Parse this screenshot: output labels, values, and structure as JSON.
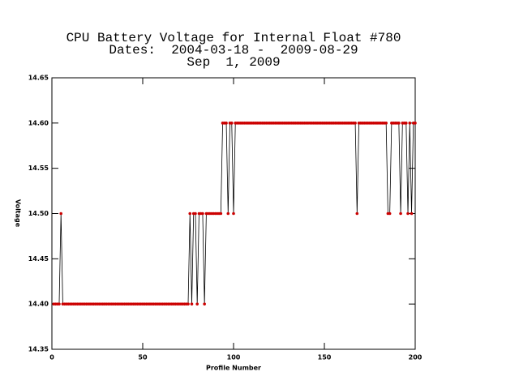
{
  "chart_data": {
    "type": "line",
    "title_lines": [
      "CPU Battery Voltage for Internal Float #780",
      "Dates:  2004-03-18 -  2009-08-29",
      "Sep  1, 2009"
    ],
    "x_label": "Profile Number",
    "y_label": "Voltage",
    "color": "#cc0000",
    "line_color": "#000000",
    "xlim": [
      0,
      200
    ],
    "xticks": [
      0,
      50,
      100,
      150,
      200
    ],
    "ylim": [
      14.35,
      14.65
    ],
    "yticks": [
      14.35,
      {
        "value": 14.4,
        "label": "14.40"
      },
      14.45,
      {
        "value": 14.5,
        "label": "14.50"
      },
      14.55,
      {
        "value": 14.6,
        "label": "14.60"
      },
      14.65
    ],
    "x": [
      1,
      2,
      3,
      4,
      5,
      6,
      7,
      8,
      9,
      10,
      11,
      12,
      13,
      14,
      15,
      16,
      17,
      18,
      19,
      20,
      21,
      22,
      23,
      24,
      25,
      26,
      27,
      28,
      29,
      30,
      31,
      32,
      33,
      34,
      35,
      36,
      37,
      38,
      39,
      40,
      41,
      42,
      43,
      44,
      45,
      46,
      47,
      48,
      49,
      50,
      51,
      52,
      53,
      54,
      55,
      56,
      57,
      58,
      59,
      60,
      61,
      62,
      63,
      64,
      65,
      66,
      67,
      68,
      69,
      70,
      71,
      72,
      73,
      74,
      75,
      76,
      77,
      78,
      79,
      80,
      81,
      82,
      83,
      84,
      85,
      86,
      87,
      88,
      89,
      90,
      91,
      92,
      93,
      94,
      95,
      96,
      97,
      98,
      99,
      100,
      101,
      102,
      103,
      104,
      105,
      106,
      107,
      108,
      109,
      110,
      111,
      112,
      113,
      114,
      115,
      116,
      117,
      118,
      119,
      120,
      121,
      122,
      123,
      124,
      125,
      126,
      127,
      128,
      129,
      130,
      131,
      132,
      133,
      134,
      135,
      136,
      137,
      138,
      139,
      140,
      141,
      142,
      143,
      144,
      145,
      146,
      147,
      148,
      149,
      150,
      151,
      152,
      153,
      154,
      155,
      156,
      157,
      158,
      159,
      160,
      161,
      162,
      163,
      164,
      165,
      166,
      167,
      168,
      169,
      170,
      171,
      172,
      173,
      174,
      175,
      176,
      177,
      178,
      179,
      180,
      181,
      182,
      183,
      184,
      185,
      186,
      187,
      188,
      189,
      190,
      191,
      192,
      193,
      194,
      195,
      196,
      197,
      198,
      199,
      200
    ],
    "values": [
      14.4,
      14.4,
      14.4,
      14.4,
      14.5,
      14.4,
      14.4,
      14.4,
      14.4,
      14.4,
      14.4,
      14.4,
      14.4,
      14.4,
      14.4,
      14.4,
      14.4,
      14.4,
      14.4,
      14.4,
      14.4,
      14.4,
      14.4,
      14.4,
      14.4,
      14.4,
      14.4,
      14.4,
      14.4,
      14.4,
      14.4,
      14.4,
      14.4,
      14.4,
      14.4,
      14.4,
      14.4,
      14.4,
      14.4,
      14.4,
      14.4,
      14.4,
      14.4,
      14.4,
      14.4,
      14.4,
      14.4,
      14.4,
      14.4,
      14.4,
      14.4,
      14.4,
      14.4,
      14.4,
      14.4,
      14.4,
      14.4,
      14.4,
      14.4,
      14.4,
      14.4,
      14.4,
      14.4,
      14.4,
      14.4,
      14.4,
      14.4,
      14.4,
      14.4,
      14.4,
      14.4,
      14.4,
      14.4,
      14.4,
      14.4,
      14.5,
      14.4,
      14.5,
      14.5,
      14.4,
      14.5,
      14.5,
      14.5,
      14.4,
      14.5,
      14.5,
      14.5,
      14.5,
      14.5,
      14.5,
      14.5,
      14.5,
      14.5,
      14.6,
      14.6,
      14.6,
      14.5,
      14.6,
      14.6,
      14.5,
      14.6,
      14.6,
      14.6,
      14.6,
      14.6,
      14.6,
      14.6,
      14.6,
      14.6,
      14.6,
      14.6,
      14.6,
      14.6,
      14.6,
      14.6,
      14.6,
      14.6,
      14.6,
      14.6,
      14.6,
      14.6,
      14.6,
      14.6,
      14.6,
      14.6,
      14.6,
      14.6,
      14.6,
      14.6,
      14.6,
      14.6,
      14.6,
      14.6,
      14.6,
      14.6,
      14.6,
      14.6,
      14.6,
      14.6,
      14.6,
      14.6,
      14.6,
      14.6,
      14.6,
      14.6,
      14.6,
      14.6,
      14.6,
      14.6,
      14.6,
      14.6,
      14.6,
      14.6,
      14.6,
      14.6,
      14.6,
      14.6,
      14.6,
      14.6,
      14.6,
      14.6,
      14.6,
      14.6,
      14.6,
      14.6,
      14.6,
      14.6,
      14.5,
      14.6,
      14.6,
      14.6,
      14.6,
      14.6,
      14.6,
      14.6,
      14.6,
      14.6,
      14.6,
      14.6,
      14.6,
      14.6,
      14.6,
      14.6,
      14.6,
      14.5,
      14.5,
      14.6,
      14.6,
      14.6,
      14.6,
      14.6,
      14.5,
      14.6,
      14.6,
      14.6,
      14.5,
      14.6,
      14.5,
      14.6,
      14.6
    ]
  }
}
